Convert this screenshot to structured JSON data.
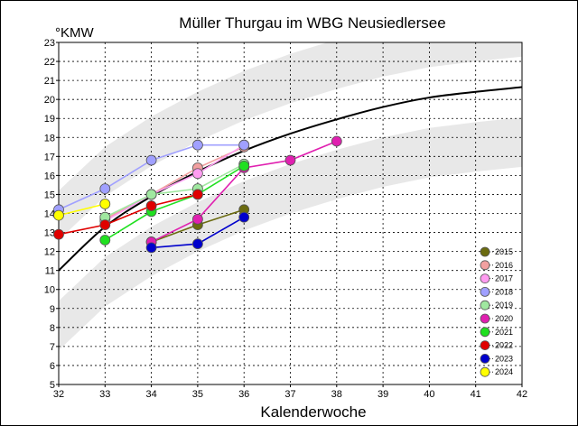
{
  "chart_data": {
    "type": "line",
    "title": "Müller Thurgau im WBG Neusiedlersee",
    "ylabel": "°KMW",
    "xlabel": "Kalenderwoche",
    "xlim": [
      32,
      42
    ],
    "ylim": [
      5,
      23
    ],
    "xticks": [
      32,
      33,
      34,
      35,
      36,
      37,
      38,
      39,
      40,
      41,
      42
    ],
    "yticks": [
      5,
      6,
      7,
      8,
      9,
      10,
      11,
      12,
      13,
      14,
      15,
      16,
      17,
      18,
      19,
      20,
      21,
      22,
      23
    ],
    "grid": true,
    "legend_position": "bottom-right",
    "band_colors": {
      "outer": "#e8e8e8",
      "inner": "#ffffff"
    },
    "trend": {
      "x": [
        32,
        33,
        34,
        35,
        36,
        37,
        38,
        39,
        40,
        41,
        42
      ],
      "y": [
        11.0,
        13.3,
        14.9,
        16.2,
        17.3,
        18.2,
        18.95,
        19.6,
        20.1,
        20.4,
        20.65
      ],
      "color": "#000000"
    },
    "series": [
      {
        "name": "2015",
        "color": "#6b6b10",
        "x": [
          34,
          35,
          36
        ],
        "y": [
          12.5,
          13.4,
          14.2
        ]
      },
      {
        "name": "2016",
        "color": "#f2a0a0",
        "x": [
          33,
          34,
          35,
          36
        ],
        "y": [
          13.7,
          15.0,
          16.4,
          17.5
        ]
      },
      {
        "name": "2017",
        "color": "#ff9cf0",
        "x": [
          33,
          34,
          35,
          36
        ],
        "y": [
          13.6,
          15.0,
          16.1,
          17.6
        ]
      },
      {
        "name": "2018",
        "color": "#a0a0ff",
        "x": [
          32,
          33,
          34,
          35,
          36
        ],
        "y": [
          14.2,
          15.3,
          16.8,
          17.6,
          17.6
        ]
      },
      {
        "name": "2019",
        "color": "#a0e8a0",
        "x": [
          33,
          34,
          35,
          36
        ],
        "y": [
          13.8,
          15.0,
          15.3,
          16.6
        ]
      },
      {
        "name": "2020",
        "color": "#e020b0",
        "x": [
          34,
          35,
          36,
          37,
          38
        ],
        "y": [
          12.5,
          13.7,
          16.4,
          16.8,
          17.8
        ]
      },
      {
        "name": "2021",
        "color": "#20e020",
        "x": [
          33,
          34,
          35,
          36
        ],
        "y": [
          12.6,
          14.1,
          15.0,
          16.5
        ]
      },
      {
        "name": "2022",
        "color": "#e00000",
        "x": [
          32,
          33,
          34,
          35
        ],
        "y": [
          12.9,
          13.4,
          14.4,
          15.0
        ]
      },
      {
        "name": "2023",
        "color": "#0000cc",
        "x": [
          34,
          35,
          36
        ],
        "y": [
          12.2,
          12.4,
          13.8
        ]
      },
      {
        "name": "2024",
        "color": "#ffff00",
        "x": [
          32,
          33
        ],
        "y": [
          13.9,
          14.5
        ]
      }
    ]
  }
}
